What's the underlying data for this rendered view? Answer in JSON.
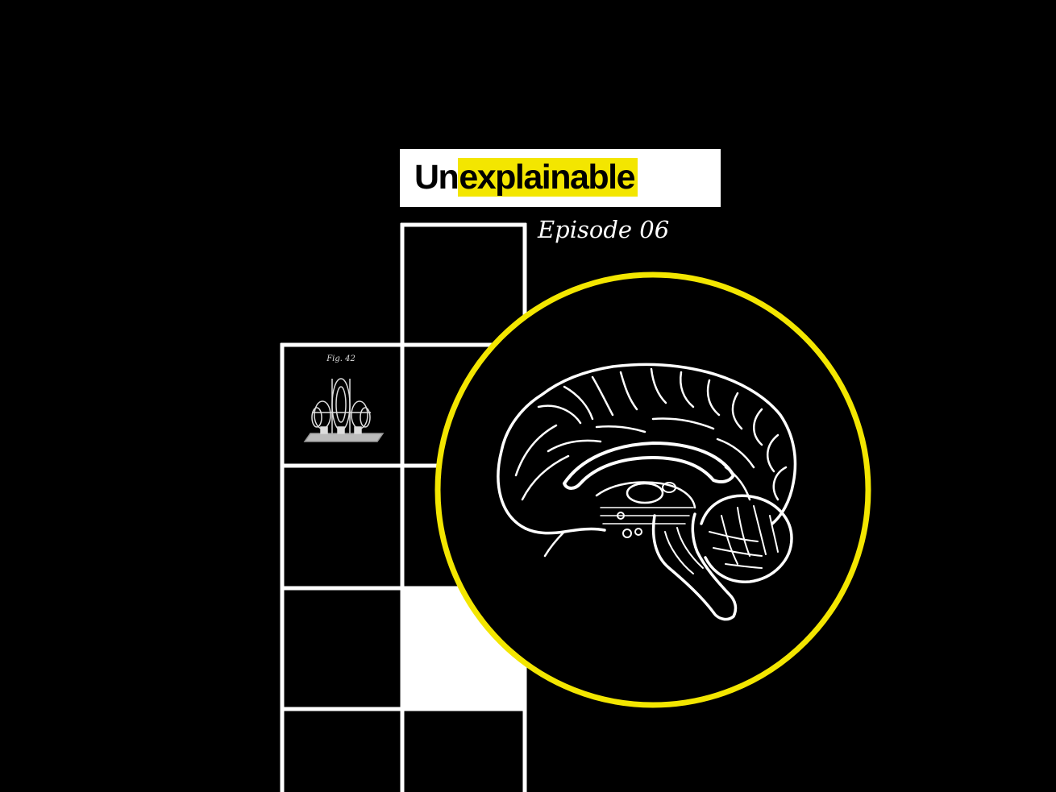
{
  "brand": {
    "part1": "Un",
    "part2": "explainable",
    "highlight_color": "#f3e600"
  },
  "episode_label": "Episode 06",
  "figure": {
    "label": "Fig. 42",
    "icon": "engraved-machine-illustration"
  },
  "main_image": {
    "icon": "brain-sagittal-illustration",
    "ring_color": "#f3e600"
  }
}
